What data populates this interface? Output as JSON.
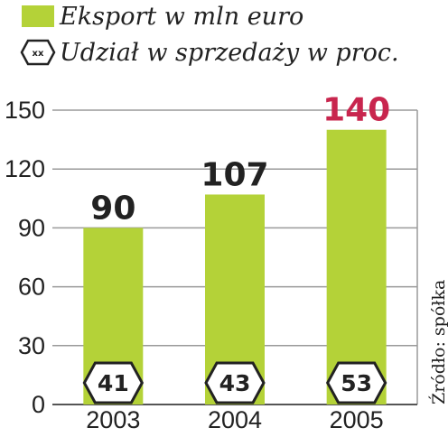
{
  "colors": {
    "bar": "#b4d238",
    "highlight": "#c8264e",
    "text": "#222222",
    "grid": "#9a9a9a",
    "axis": "#555555"
  },
  "legend": {
    "bar_label": "Eksport w mln euro",
    "share_label": "Udział w sprzedaży w proc.",
    "share_icon_text": "xx",
    "share_icon": "hexagon-icon"
  },
  "source": "Źródło: spółka",
  "chart_data": {
    "type": "bar",
    "categories": [
      "2003",
      "2004",
      "2005"
    ],
    "values": [
      90,
      107,
      140
    ],
    "value_labels": [
      "90",
      "107",
      "140"
    ],
    "highlight_index": 2,
    "share_percent": [
      41,
      43,
      53
    ],
    "share_labels": [
      "41",
      "43",
      "53"
    ],
    "yticks": [
      "0",
      "30",
      "60",
      "90",
      "120",
      "150"
    ],
    "ylim": [
      0,
      150
    ],
    "grid": true,
    "legend_position": "top-left"
  }
}
